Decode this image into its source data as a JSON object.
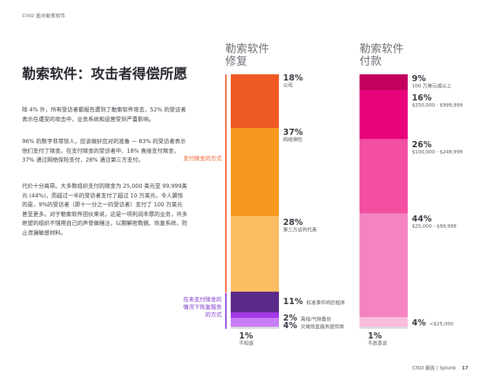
{
  "header": "CISO 面对勒索软件",
  "title": "勒索软件：攻击者得偿所愿",
  "paragraphs": [
    "除 4% 外，所有受访者都报告遭到了勒索软件攻击，52% 的受访者表示在遭受的攻击中，业务系统和运营受到严重影响。",
    "96% 的数字非常惊人，应该做好应对的准备 — 83% 的受访者表示他们支付了赎金。在支付赎金的受访者中，18% 直接支付赎金，37% 通过网络保险支付，28% 通过第三方支付。",
    "代价十分高昂。大多数组织支付的赎金为 25,000 美元至 99,999美元 (44%)，而超过一半的受访者支付了超过 10 万美元，令人震惊的是，9%的受访者（即十一分之一的受访者）支付了 100 万美元甚至更多。对于勒索软件团伙来说，这是一项利润丰厚的业务，许多绝望的组织不惜用自己的声誉做赌注，以期解密数据、恢复系统，防止泄漏敏感材料。"
  ],
  "col1_title": "勒索软件\n修复",
  "col2_title": "勒索软件\n付款",
  "side_paid": "支付赎金的方式",
  "side_unpaid": "在未支付赎金的情况下恢复服务的方式",
  "col1": [
    {
      "pct": "18%",
      "label": "公司",
      "color": "#ef5a24"
    },
    {
      "pct": "37%",
      "label": "网络保险",
      "color": "#f7981f"
    },
    {
      "pct": "28%",
      "label": "第三方谈判代表",
      "color": "#fbbd62"
    },
    {
      "pct": "11%",
      "label": "标准事件响应程序",
      "color": "#5c2a8a"
    },
    {
      "pct": "2%",
      "label": "离线/气隙备份",
      "color": "#a238e6"
    },
    {
      "pct": "4%",
      "label": "灾难恢复服务提供商",
      "color": "#c77df5"
    },
    {
      "pct": "1%",
      "label": "不知道",
      "color": "#dcdce0"
    }
  ],
  "col2": [
    {
      "pct": "9%",
      "label": "100 万美元或以上",
      "color": "#c4005f"
    },
    {
      "pct": "16%",
      "label": "$250,000 - $999,999",
      "color": "#e8057c"
    },
    {
      "pct": "26%",
      "label": "$100,000 - $249,999",
      "color": "#f24fa2"
    },
    {
      "pct": "44%",
      "label": "$25,000 - $99,999",
      "color": "#f583c0"
    },
    {
      "pct": "4%",
      "label": "<$25,000",
      "color": "#f9bcdc"
    },
    {
      "pct": "1%",
      "label": "不愿意说",
      "color": "#dcdce0"
    }
  ],
  "footer": "CISO 报告 | Splunk",
  "page_number": "17"
}
